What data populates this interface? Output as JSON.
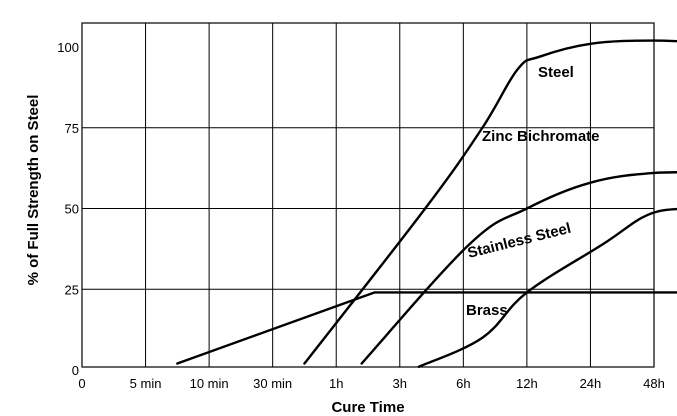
{
  "chart_data": {
    "type": "line",
    "title": "",
    "xlabel": "Cure Time",
    "ylabel": "% of Full Strength on Steel",
    "x_ticks": [
      "0",
      "5 min",
      "10 min",
      "30 min",
      "1h",
      "3h",
      "6h",
      "12h",
      "24h",
      "48h"
    ],
    "y_ticks": [
      0,
      25,
      50,
      75,
      100
    ],
    "ylim": [
      0,
      105
    ],
    "grid": true,
    "series": [
      {
        "name": "Steel",
        "points": [
          [
            3.5,
            2
          ],
          [
            5.4,
            50
          ],
          [
            6.3,
            75
          ],
          [
            6.85,
            93
          ],
          [
            7.2,
            97
          ],
          [
            8,
            101
          ],
          [
            9,
            102
          ],
          [
            10,
            101
          ]
        ]
      },
      {
        "name": "Zinc Bichromate",
        "points": [
          [
            4.4,
            2
          ],
          [
            6.1,
            39
          ],
          [
            7,
            50
          ],
          [
            8,
            58
          ],
          [
            9,
            61
          ],
          [
            10,
            61
          ]
        ]
      },
      {
        "name": "Stainless Steel",
        "points": [
          [
            5.3,
            1
          ],
          [
            6.3,
            10
          ],
          [
            7,
            24
          ],
          [
            8.2,
            39
          ],
          [
            8.9,
            48
          ],
          [
            9.5,
            50
          ],
          [
            10,
            50
          ]
        ]
      },
      {
        "name": "Brass",
        "points": [
          [
            1.5,
            2
          ],
          [
            4.6,
            24
          ],
          [
            10,
            24
          ]
        ]
      }
    ]
  }
}
